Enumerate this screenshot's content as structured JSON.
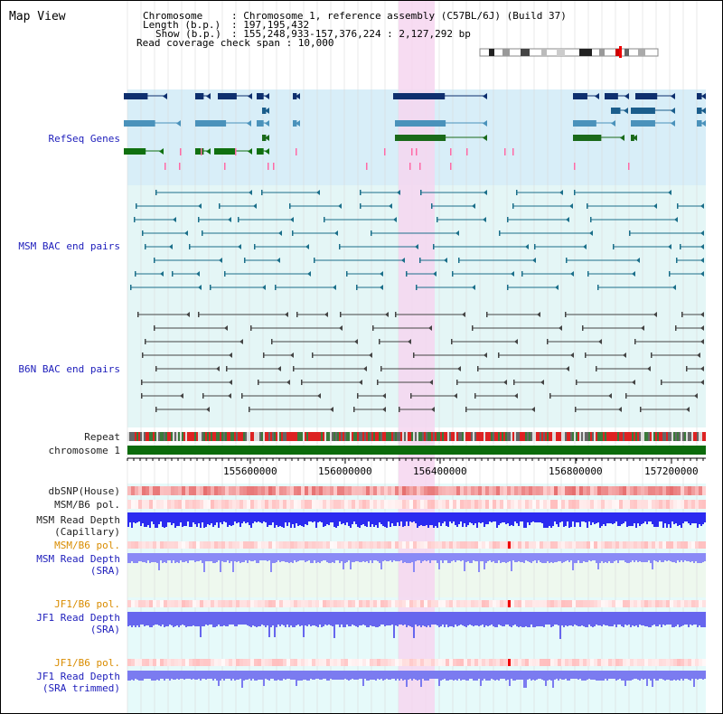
{
  "view": {
    "title": "Map View"
  },
  "info": {
    "chromosome_key": "Chromosome",
    "chromosome_value": ": Chromosome 1, reference assembly (C57BL/6J) (Build 37)",
    "length_key": "Length (b.p.)",
    "length_value": ": 197,195,432",
    "show_key": "Show (b.p.)",
    "show_value": ": 155,248,933-157,376,224 : 2,127,292 bp",
    "coverage_text": "Read coverage check span : 10,000"
  },
  "tracks": {
    "refseq": "RefSeq Genes",
    "msm_bac": "MSM BAC end pairs",
    "b6n_bac": "B6N BAC end pairs",
    "repeat": "Repeat",
    "chromosome": "chromosome 1",
    "dbsnp": "dbSNP(House)",
    "msm_b6_pol": "MSM/B6 pol.",
    "msm_read_depth_cap_1": "MSM Read Depth",
    "msm_read_depth_cap_2": "(Capillary)",
    "msm_b6_pol_sra": "MSM/B6 pol.",
    "msm_read_depth_sra_1": "MSM Read Depth",
    "msm_read_depth_sra_2": "(SRA)",
    "jf1_b6_pol": "JF1/B6 pol.",
    "jf1_read_depth_1": "JF1 Read Depth",
    "jf1_read_depth_2": "(SRA)",
    "jf1_b6_pol_trim": "JF1/B6 pol.",
    "jf1_read_depth_trim_1": "JF1 Read Depth",
    "jf1_read_depth_trim_2": "(SRA trimmed)"
  },
  "axis": {
    "ticks": [
      "155600000",
      "156000000",
      "156400000",
      "156800000",
      "157200000"
    ]
  },
  "colors": {
    "refseq_bg": "#d8eef8",
    "bac_bg": "#e4f6f6",
    "highlight": "#f6d6f0",
    "chromosome": "#0b6b0b",
    "depth_blue": "#2b2bf0",
    "depth_light": "#8a8af6",
    "pol_red": "#e44444"
  }
}
